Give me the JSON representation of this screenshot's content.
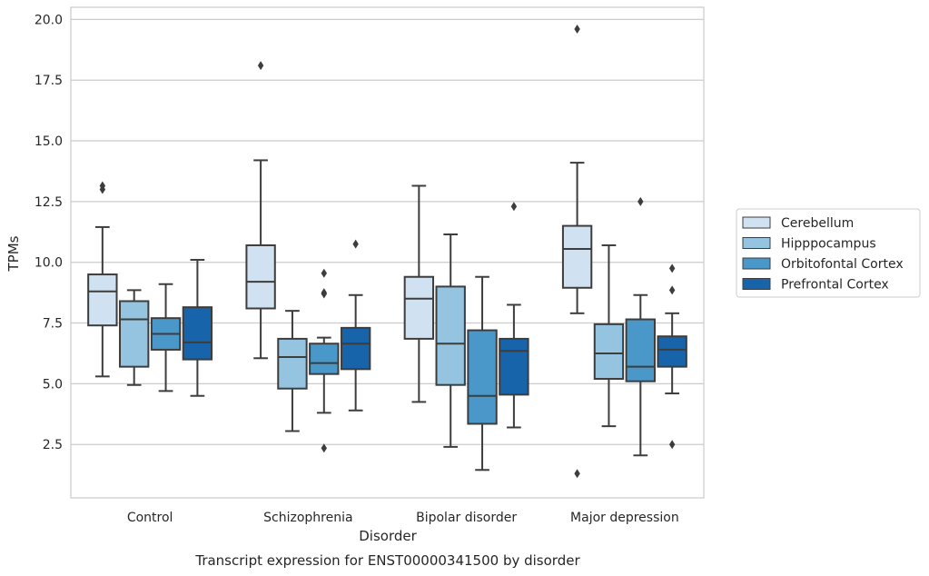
{
  "chart_data": {
    "type": "box",
    "title": "",
    "caption": "Transcript expression for ENST00000341500 by disorder",
    "xlabel": "Disorder",
    "ylabel": "TPMs",
    "ylim": [
      0.3,
      20.5
    ],
    "yticks": [
      2.5,
      5.0,
      7.5,
      10.0,
      12.5,
      15.0,
      17.5,
      20.0
    ],
    "ytick_labels": [
      "2.5",
      "5.0",
      "7.5",
      "10.0",
      "12.5",
      "15.0",
      "17.5",
      "20.0"
    ],
    "grid": "horizontal",
    "legend_position": "right",
    "categories": [
      "Control",
      "Schizophrenia",
      "Bipolar disorder",
      "Major depression"
    ],
    "series": [
      {
        "name": "Cerebellum",
        "color": "#d0e1f2",
        "boxes": [
          {
            "whislo": 5.3,
            "q1": 7.4,
            "med": 8.8,
            "q3": 9.5,
            "whishi": 11.45,
            "fliers": [
              13.0,
              13.15
            ]
          },
          {
            "whislo": 6.05,
            "q1": 8.1,
            "med": 9.2,
            "q3": 10.7,
            "whishi": 14.2,
            "fliers": [
              18.1
            ]
          },
          {
            "whislo": 4.25,
            "q1": 6.85,
            "med": 8.5,
            "q3": 9.4,
            "whishi": 13.15,
            "fliers": []
          },
          {
            "whislo": 7.9,
            "q1": 8.95,
            "med": 10.55,
            "q3": 11.5,
            "whishi": 14.1,
            "fliers": [
              19.6,
              1.3
            ]
          }
        ]
      },
      {
        "name": "Hipppocampus",
        "color": "#94c4df",
        "boxes": [
          {
            "whislo": 4.95,
            "q1": 5.7,
            "med": 7.65,
            "q3": 8.4,
            "whishi": 8.85,
            "fliers": []
          },
          {
            "whislo": 3.05,
            "q1": 4.8,
            "med": 6.1,
            "q3": 6.85,
            "whishi": 8.0,
            "fliers": []
          },
          {
            "whislo": 2.4,
            "q1": 4.95,
            "med": 6.65,
            "q3": 9.0,
            "whishi": 11.15,
            "fliers": []
          },
          {
            "whislo": 3.25,
            "q1": 5.2,
            "med": 6.25,
            "q3": 7.45,
            "whishi": 10.7,
            "fliers": []
          }
        ]
      },
      {
        "name": "Orbitofontal Cortex",
        "color": "#4a98c9",
        "boxes": [
          {
            "whislo": 4.7,
            "q1": 6.4,
            "med": 7.05,
            "q3": 7.7,
            "whishi": 9.1,
            "fliers": []
          },
          {
            "whislo": 3.8,
            "q1": 5.4,
            "med": 5.85,
            "q3": 6.65,
            "whishi": 6.9,
            "fliers": [
              9.55,
              8.75,
              8.7,
              2.35
            ]
          },
          {
            "whislo": 1.45,
            "q1": 3.35,
            "med": 4.5,
            "q3": 7.2,
            "whishi": 9.4,
            "fliers": []
          },
          {
            "whislo": 2.05,
            "q1": 5.1,
            "med": 5.7,
            "q3": 7.65,
            "whishi": 8.65,
            "fliers": [
              12.5
            ]
          }
        ]
      },
      {
        "name": "Prefrontal Cortex",
        "color": "#1764ab",
        "boxes": [
          {
            "whislo": 4.5,
            "q1": 6.0,
            "med": 6.7,
            "q3": 8.15,
            "whishi": 10.1,
            "fliers": []
          },
          {
            "whislo": 3.9,
            "q1": 5.6,
            "med": 6.65,
            "q3": 7.3,
            "whishi": 8.65,
            "fliers": [
              10.75
            ]
          },
          {
            "whislo": 3.2,
            "q1": 4.55,
            "med": 6.35,
            "q3": 6.85,
            "whishi": 8.25,
            "fliers": [
              12.3
            ]
          },
          {
            "whislo": 4.6,
            "q1": 5.7,
            "med": 6.4,
            "q3": 6.95,
            "whishi": 7.9,
            "fliers": [
              9.75,
              8.85,
              2.5
            ]
          }
        ]
      }
    ]
  }
}
